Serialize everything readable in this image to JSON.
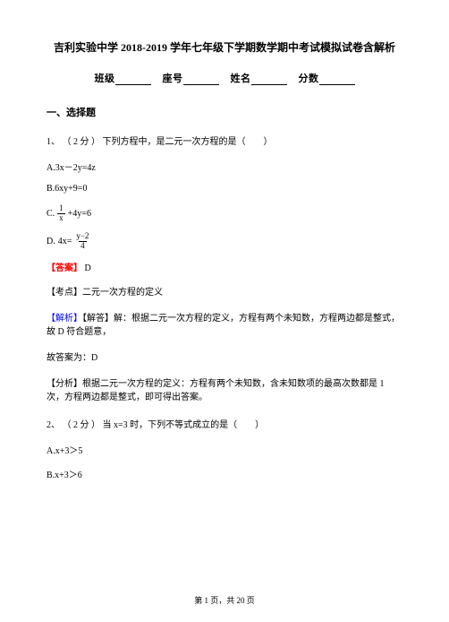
{
  "title": "吉利实验中学 2018-2019 学年七年级下学期数学期中考试模拟试卷含解析",
  "form": {
    "class_label": "班级",
    "seat_label": "座号",
    "name_label": "姓名",
    "score_label": "分数"
  },
  "section1": "一、选择题",
  "q1": {
    "stem": "1、 （ 2 分 ） 下列方程中，是二元一次方程的是（　　）",
    "optA": "A.3x－2y=4z",
    "optB": "B.6xy+9=0",
    "optC_prefix": "C. ",
    "optC_num": "1",
    "optC_den": "x",
    "optC_rest": "+4y=6",
    "optD_prefix": "D. ",
    "optD_lhs": "4x=",
    "optD_num": "y−2",
    "optD_den": "4",
    "answer_label": "【答案】",
    "answer_val": " D",
    "kaodian": "【考点】二元一次方程的定义",
    "jiexi_label": "【解析】",
    "jiexi_text": "【解答】解：根据二元一次方程的定义，方程有两个未知数，方程两边都是整式，故 D 符合题意，",
    "conclusion": "故答案为：D",
    "fenxi": "【分析】根据二元一次方程的定义：方程有两个未知数，含未知数项的最高次数都是 1 次，方程两边都是整式，即可得出答案。"
  },
  "q2": {
    "stem": "2、 （ 2 分 ） 当 x=3 时，下列不等式成立的是（　　）",
    "optA": "A.x+3＞5",
    "optB": "B.x+3＞6"
  },
  "footer": "第 1 页，共 20 页",
  "colors": {
    "red": "#ff0000",
    "blue": "#0000ff",
    "text": "#000000",
    "bg": "#ffffff"
  },
  "typography": {
    "title_fontsize": 12,
    "body_fontsize": 10,
    "font_family": "SimSun"
  }
}
